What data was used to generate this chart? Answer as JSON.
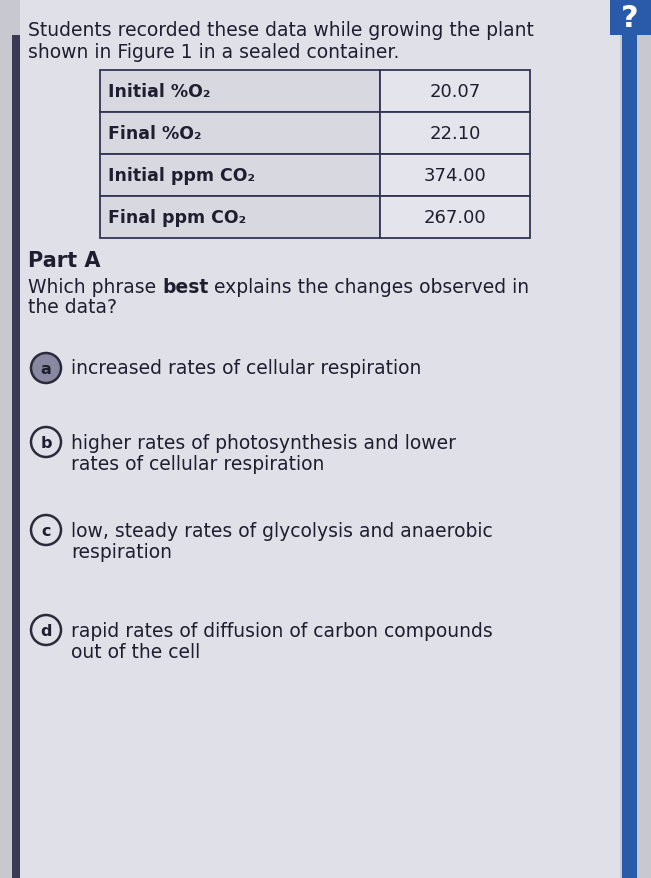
{
  "bg_outer": "#c8c8d0",
  "bg_content": "#e0e0e8",
  "border_color": "#2a5aaa",
  "header_line1": "Students recorded these data while growing the plant",
  "header_line2": "shown in Figure 1 in a sealed container.",
  "table_rows": [
    {
      "label": "Initial %O₂",
      "value": "20.07"
    },
    {
      "label": "Final %O₂",
      "value": "22.10"
    },
    {
      "label": "Initial ppm CO₂",
      "value": "374.00"
    },
    {
      "label": "Final ppm CO₂",
      "value": "267.00"
    }
  ],
  "part_a_label": "Part A",
  "options": [
    {
      "letter": "a",
      "text": "increased rates of cellular respiration",
      "filled": true,
      "multiline": false
    },
    {
      "letter": "b",
      "text1": "higher rates of photosynthesis and lower",
      "text2": "rates of cellular respiration",
      "filled": false,
      "multiline": true
    },
    {
      "letter": "c",
      "text1": "low, steady rates of glycolysis and anaerobic",
      "text2": "respiration",
      "filled": false,
      "multiline": true
    },
    {
      "letter": "d",
      "text1": "rapid rates of diffusion of carbon compounds",
      "text2": "out of the cell",
      "filled": false,
      "multiline": true
    }
  ],
  "text_color": "#1e1e30",
  "option_circle_color": "#2a2a3a",
  "option_filled_bg": "#8888a0",
  "top_right_color": "#2a5aaa",
  "right_bar_color": "#2a5aaa",
  "table_cell_left_bg": "#d8d8e0",
  "table_cell_right_bg": "#e4e4ec",
  "table_border": "#333355",
  "fontsize_header": 13.5,
  "fontsize_table_label": 12.5,
  "fontsize_table_value": 13.0,
  "fontsize_parta": 15.0,
  "fontsize_question": 13.5,
  "fontsize_option": 13.5,
  "fontsize_circle_letter": 11.5
}
